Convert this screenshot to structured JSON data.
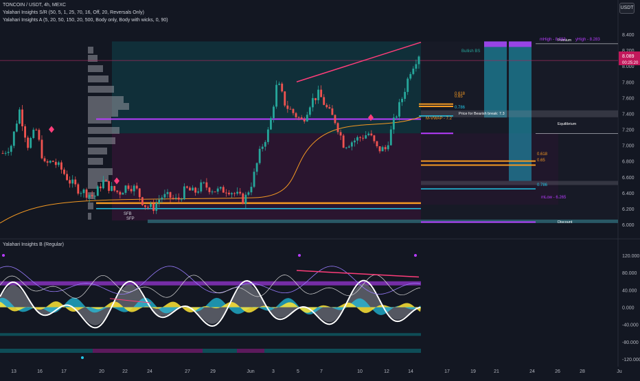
{
  "header": {
    "symbol_line": "TONCOIN / USDT, 4h, MEXC",
    "indicator1": "Yalahari Insights S/R (50, 5, 1, 25, 70, 16, Off, 20, Reversals Only)",
    "indicator2": "Yalahari Insights A (5, 20, 50, 150, 20, 500, Body only, Body with wicks, 0, 90)",
    "currency_button": "USDT"
  },
  "oscillator": {
    "title": "Yalahari Insights B (Regular)"
  },
  "colors": {
    "background": "#131722",
    "up_candle": "#26a69a",
    "down_candle": "#ef5350",
    "up_cloud": "#0e4d57",
    "down_cloud": "#3a1438",
    "orange": "#f59a23",
    "cyan": "#22c6e6",
    "magenta": "#b83cff",
    "pink": "#ff3d7a",
    "yellow": "#ffe535"
  },
  "chart_data": [
    {
      "type": "candlestick",
      "ylim": [
        5.9,
        8.5
      ],
      "y_ticks": [
        "8.400",
        "8.200",
        "8.000",
        "7.800",
        "7.600",
        "7.400",
        "7.200",
        "7.000",
        "6.800",
        "6.600",
        "6.400",
        "6.200",
        "6.000"
      ],
      "x_ticks": [
        "13",
        "16",
        "17",
        "20",
        "22",
        "24",
        "27",
        "29",
        "Jun",
        "3",
        "5",
        "7",
        "10",
        "12",
        "14",
        "17",
        "19",
        "21",
        "24",
        "26",
        "28",
        "Ju"
      ],
      "last_price": "8.089",
      "countdown": "00:25:20",
      "close_path": [
        6.9,
        7.0,
        7.45,
        7.0,
        7.2,
        6.75,
        6.8,
        6.7,
        6.55,
        6.45,
        6.4,
        6.35,
        6.55,
        6.45,
        6.4,
        6.5,
        6.45,
        6.25,
        6.2,
        6.35,
        6.35,
        6.3,
        6.45,
        6.4,
        6.5,
        6.45,
        6.42,
        6.45,
        6.38,
        6.3,
        6.55,
        6.95,
        7.2,
        7.8,
        7.5,
        7.4,
        7.3,
        7.55,
        7.65,
        7.45,
        7.3,
        7.0,
        7.05,
        7.1,
        7.15,
        6.95,
        6.95,
        7.3,
        7.6,
        7.95,
        8.15
      ],
      "levels": [
        {
          "label": "0.618",
          "value": 7.52
        },
        {
          "label": "0.65",
          "value": 7.49
        },
        {
          "label": "0.786",
          "value": 7.37
        },
        {
          "label": "M-VWAP - 7.2",
          "value": 7.2
        },
        {
          "label": "Price for Bearish break: 7.3",
          "value": 7.3
        },
        {
          "label": "Equilibrium",
          "value": 7.15
        },
        {
          "label": "0.618",
          "value": 6.8
        },
        {
          "label": "0.65",
          "value": 6.75
        },
        {
          "label": "0.786",
          "value": 6.45
        },
        {
          "label": "mLow - 6.265",
          "value": 6.265
        },
        {
          "label": "Discount",
          "value": 6.03
        },
        {
          "label": "Premium",
          "value": 8.28
        },
        {
          "label": "mHigh - 8.283",
          "value": 8.283
        },
        {
          "label": "yHigh - 8.283",
          "value": 8.283
        },
        {
          "label": "Bullish BS",
          "value": 8.1
        }
      ],
      "marker_labels": [
        "SFB",
        "SFP"
      ]
    },
    {
      "type": "line",
      "ylim": [
        -120,
        120
      ],
      "y_ticks": [
        "120.000",
        "80.000",
        "40.000",
        "0.000",
        "-40.000",
        "-80.000",
        "-120.000"
      ]
    }
  ]
}
